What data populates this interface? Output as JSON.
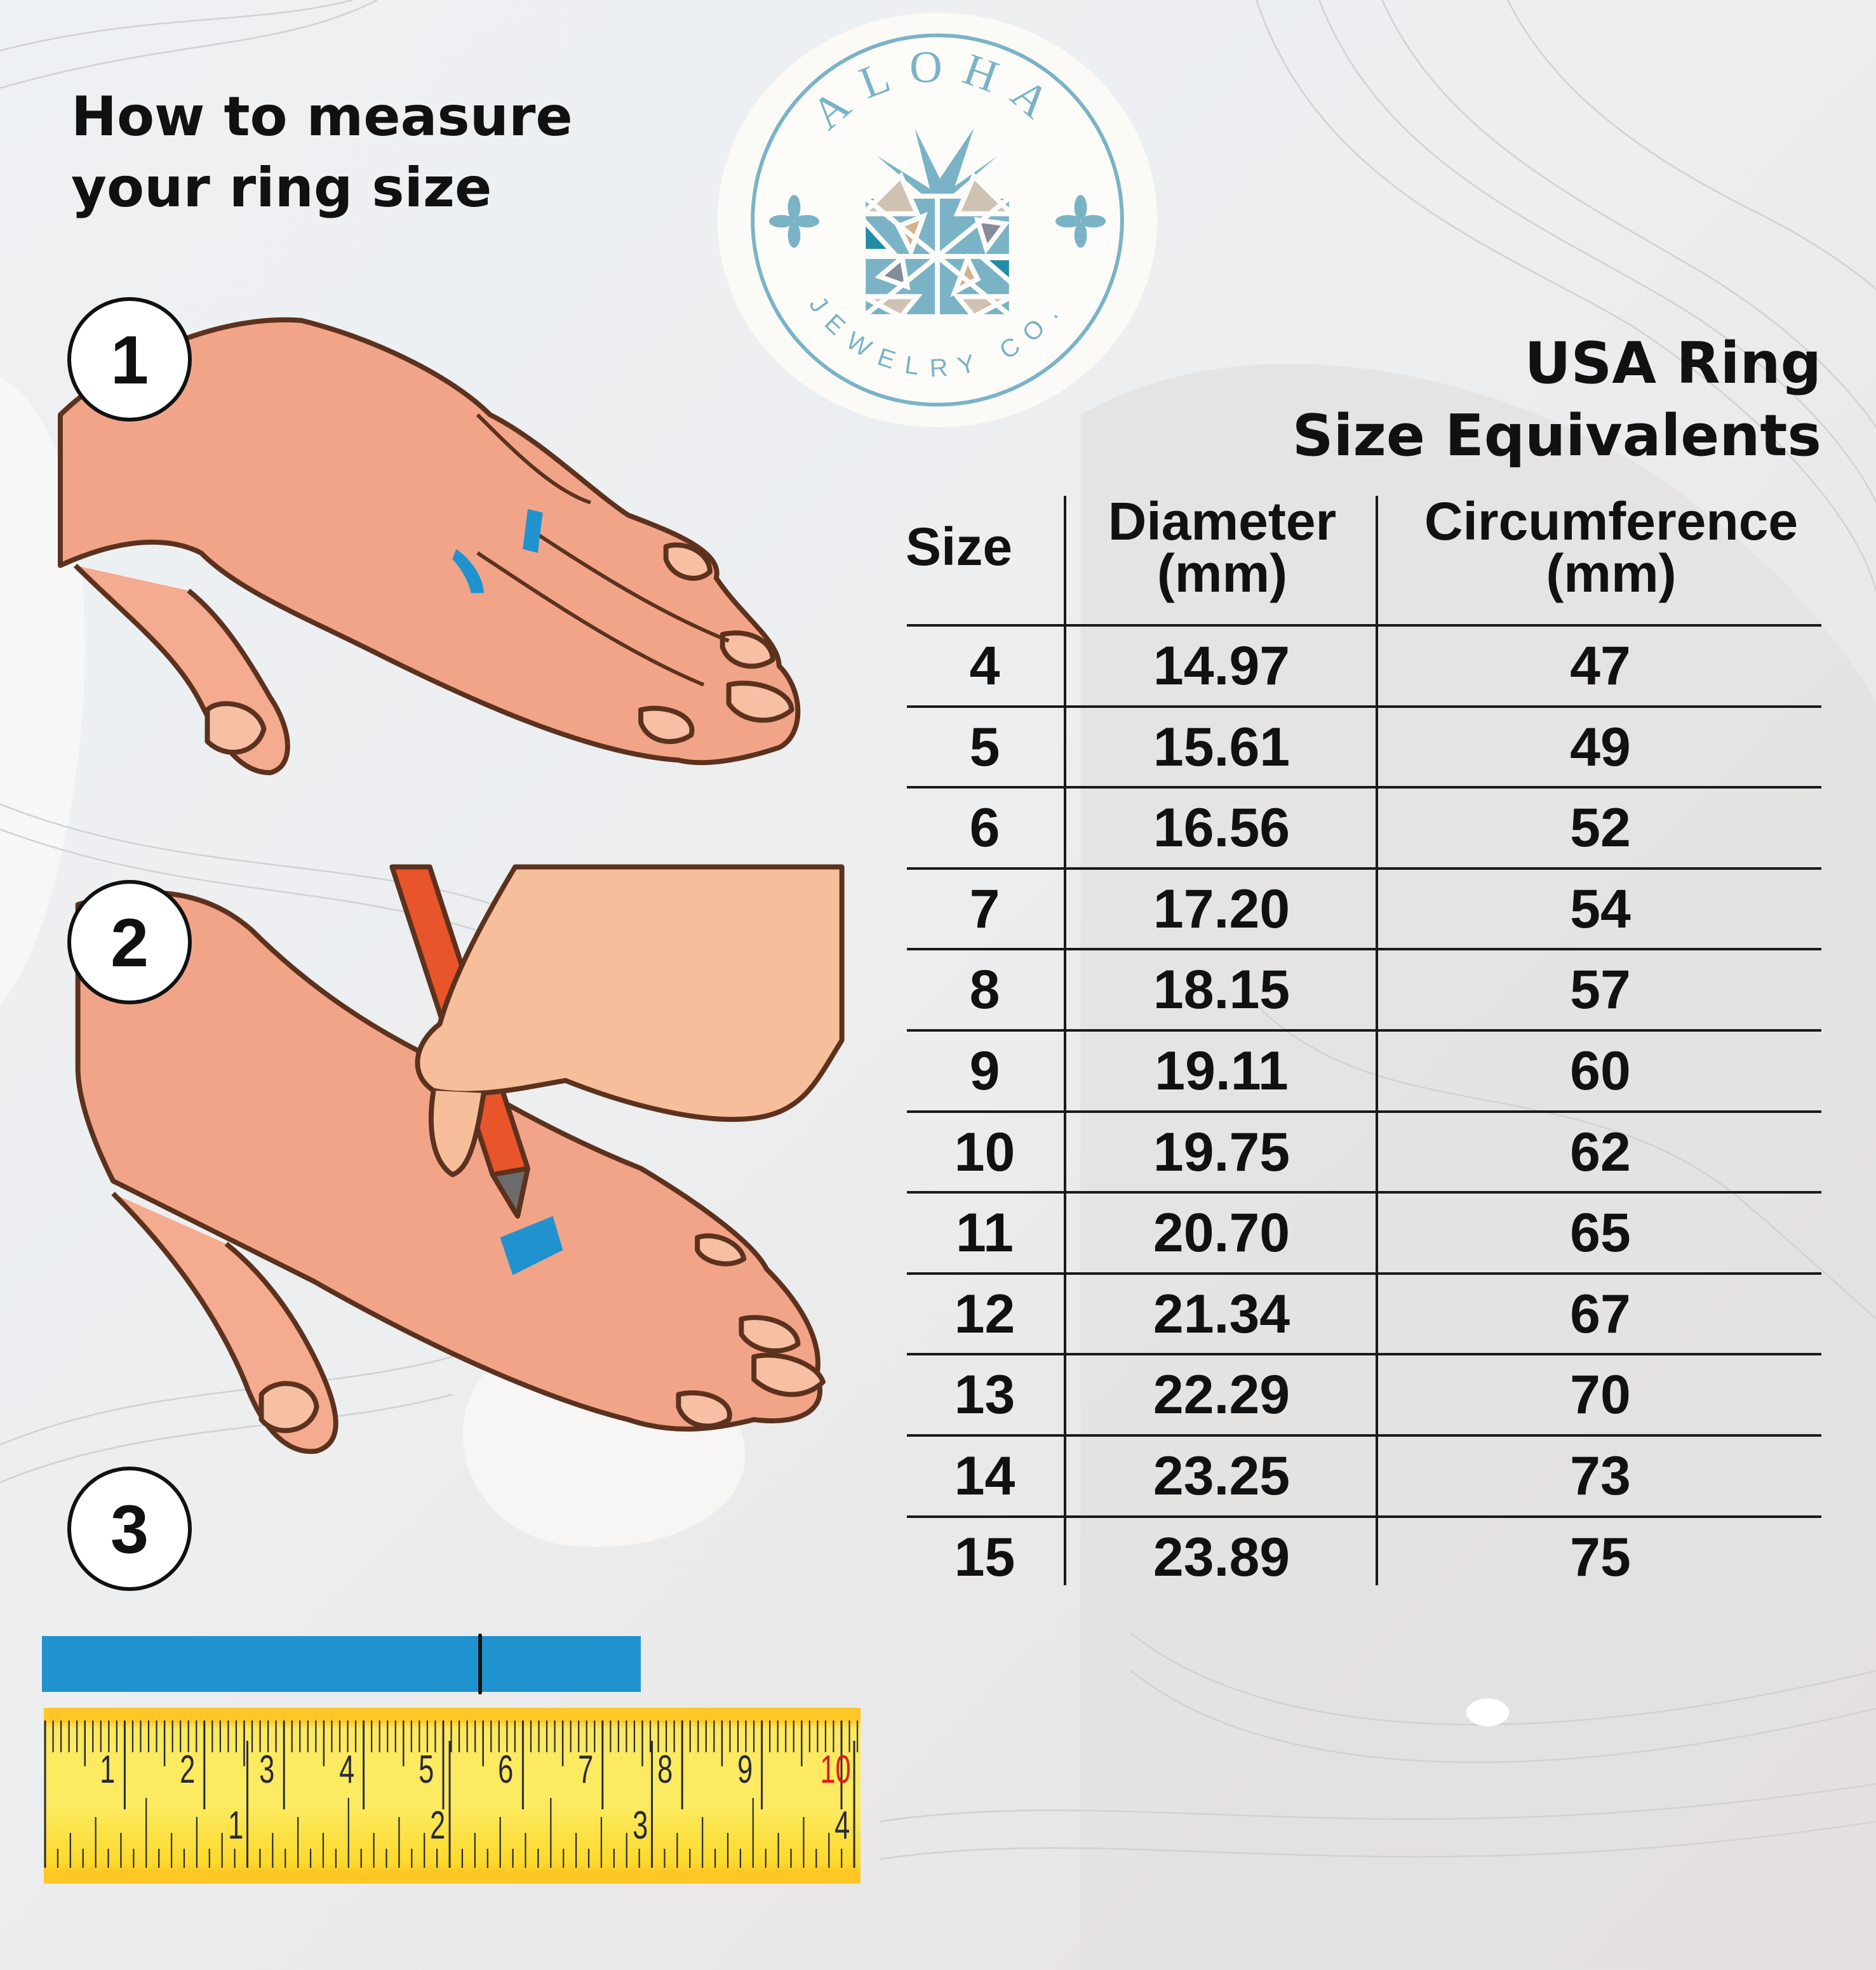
{
  "heading": {
    "line1": "How to measure",
    "line2": "your ring size"
  },
  "steps": [
    "1",
    "2",
    "3"
  ],
  "logo": {
    "brand": "ALOHA",
    "sub": "JEWELRY CO.",
    "color": "#7ab3c6"
  },
  "table": {
    "title_line1": "USA Ring",
    "title_line2": "Size Equivalents",
    "headers": {
      "size": "Size",
      "diameter_l1": "Diameter",
      "diameter_l2": "(mm)",
      "circumference_l1": "Circumference",
      "circumference_l2": "(mm)"
    },
    "rows": [
      {
        "size": "4",
        "diameter": "14.97",
        "circumference": "47"
      },
      {
        "size": "5",
        "diameter": "15.61",
        "circumference": "49"
      },
      {
        "size": "6",
        "diameter": "16.56",
        "circumference": "52"
      },
      {
        "size": "7",
        "diameter": "17.20",
        "circumference": "54"
      },
      {
        "size": "8",
        "diameter": "18.15",
        "circumference": "57"
      },
      {
        "size": "9",
        "diameter": "19.11",
        "circumference": "60"
      },
      {
        "size": "10",
        "diameter": "19.75",
        "circumference": "62"
      },
      {
        "size": "11",
        "diameter": "20.70",
        "circumference": "65"
      },
      {
        "size": "12",
        "diameter": "21.34",
        "circumference": "67"
      },
      {
        "size": "13",
        "diameter": "22.29",
        "circumference": "70"
      },
      {
        "size": "14",
        "diameter": "23.25",
        "circumference": "73"
      },
      {
        "size": "15",
        "diameter": "23.89",
        "circumference": "75"
      }
    ]
  },
  "ruler": {
    "cm_labels": [
      "1",
      "2",
      "3",
      "4",
      "5",
      "6",
      "7",
      "8",
      "9",
      "10"
    ],
    "inch_labels": [
      "1",
      "2",
      "3",
      "4"
    ],
    "highlight_color": "#e01b1b",
    "tape_color": "#fceb62"
  },
  "paper_strip": {
    "color": "#2093cf",
    "mark_cm": 5.5
  }
}
